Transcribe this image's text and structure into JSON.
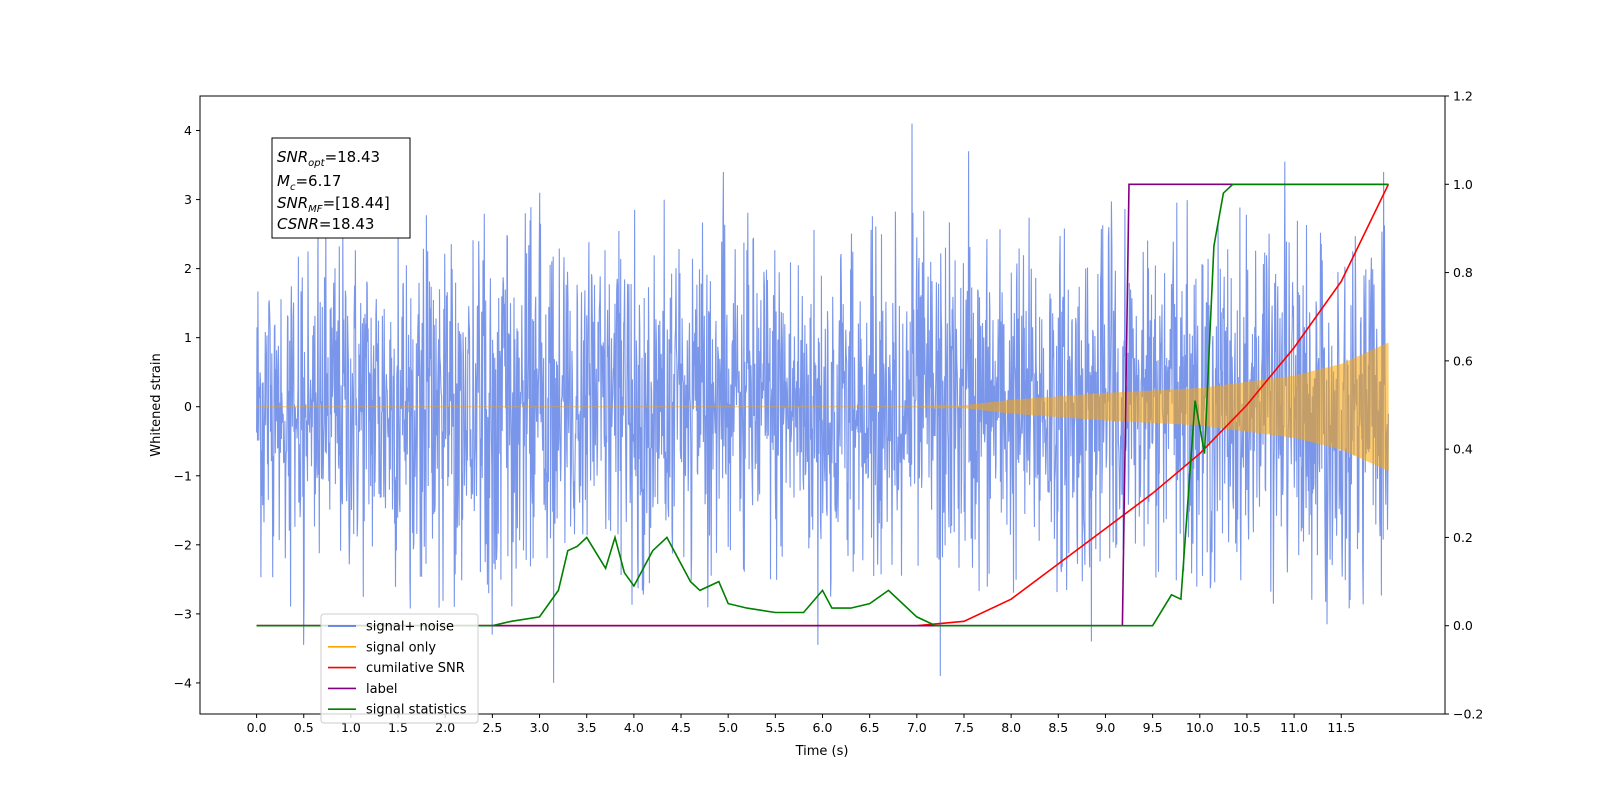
{
  "chart_data": {
    "type": "line",
    "xlabel": "Time (s)",
    "ylabel": "Whitened strain",
    "xlim": [
      -0.6,
      12.6
    ],
    "ylim": [
      -4.45,
      4.5
    ],
    "y2lim": [
      -0.2,
      1.2
    ],
    "x_ticks": [
      "0.0",
      "0.5",
      "1.0",
      "1.5",
      "2.0",
      "2.5",
      "3.0",
      "3.5",
      "4.0",
      "4.5",
      "5.0",
      "5.5",
      "6.0",
      "6.5",
      "7.0",
      "7.5",
      "8.0",
      "8.5",
      "9.0",
      "9.5",
      "10.0",
      "10.5",
      "11.0",
      "11.5"
    ],
    "y_ticks": [
      "4",
      "3",
      "2",
      "1",
      "0",
      "−1",
      "−2",
      "−3",
      "−4"
    ],
    "y2_ticks": [
      "1.2",
      "1.0",
      "0.8",
      "0.6",
      "0.4",
      "0.2",
      "0.0",
      "−0.2"
    ],
    "grid": false,
    "legend_position": "lower-left",
    "annotation": {
      "snr_opt_base": "SNR",
      "snr_opt_sub": "opt",
      "snr_opt_value": "=18.43",
      "mc_base": "M",
      "mc_sub": "c",
      "mc_value": "=6.17",
      "snr_mf_base": "SNR",
      "snr_mf_sub": "MF",
      "snr_mf_value": "=[18.44]",
      "csnr_base": "CSNR",
      "csnr_value": "=18.43"
    },
    "series": [
      {
        "name": "signal+ noise",
        "axis": "left",
        "color": "#4169e1",
        "style": "noise",
        "x_start": 0.0,
        "x_end": 12.0,
        "amplitude": 1.2,
        "spikes": [
          [
            0.5,
            -3.45
          ],
          [
            0.65,
            2.8
          ],
          [
            1.5,
            2.7
          ],
          [
            2.5,
            -3.3
          ],
          [
            3.15,
            -4.0
          ],
          [
            3.0,
            3.1
          ],
          [
            4.95,
            3.4
          ],
          [
            5.95,
            -3.45
          ],
          [
            6.95,
            4.1
          ],
          [
            7.25,
            -3.9
          ],
          [
            7.55,
            3.7
          ],
          [
            8.85,
            -3.4
          ],
          [
            10.9,
            3.55
          ],
          [
            11.35,
            -3.15
          ],
          [
            11.95,
            3.4
          ]
        ]
      },
      {
        "name": "signal only",
        "axis": "left",
        "color": "#ffa500",
        "style": "chirp",
        "x_start": 0.0,
        "x_end": 12.0,
        "envelope": [
          [
            0.0,
            0.0
          ],
          [
            7.0,
            0.0
          ],
          [
            7.5,
            0.02
          ],
          [
            8.0,
            0.1
          ],
          [
            9.0,
            0.2
          ],
          [
            10.0,
            0.27
          ],
          [
            11.0,
            0.45
          ],
          [
            11.5,
            0.62
          ],
          [
            12.0,
            0.93
          ]
        ]
      },
      {
        "name": "cumilative SNR",
        "axis": "right",
        "color": "#ff0000",
        "x": [
          0.0,
          7.0,
          7.5,
          8.0,
          8.5,
          9.0,
          9.5,
          10.0,
          10.5,
          11.0,
          11.5,
          12.0
        ],
        "values": [
          0.0,
          0.0,
          0.01,
          0.06,
          0.14,
          0.22,
          0.3,
          0.39,
          0.5,
          0.63,
          0.78,
          1.0
        ]
      },
      {
        "name": "label",
        "axis": "right",
        "color": "#800080",
        "x": [
          0.0,
          9.18,
          9.25,
          12.0
        ],
        "values": [
          0.0,
          0.0,
          1.0,
          1.0
        ]
      },
      {
        "name": "signal statistics",
        "axis": "right",
        "color": "#008000",
        "x": [
          0.0,
          2.5,
          2.7,
          3.0,
          3.2,
          3.3,
          3.4,
          3.5,
          3.7,
          3.8,
          3.9,
          4.0,
          4.2,
          4.35,
          4.5,
          4.6,
          4.7,
          4.9,
          5.0,
          5.2,
          5.5,
          5.8,
          6.0,
          6.1,
          6.3,
          6.5,
          6.7,
          7.0,
          7.2,
          7.5,
          8.0,
          8.5,
          9.0,
          9.5,
          9.7,
          9.8,
          9.95,
          10.05,
          10.15,
          10.25,
          10.35,
          10.5,
          12.0
        ],
        "values": [
          0.0,
          0.0,
          0.01,
          0.02,
          0.08,
          0.17,
          0.18,
          0.2,
          0.13,
          0.2,
          0.12,
          0.09,
          0.17,
          0.2,
          0.14,
          0.1,
          0.08,
          0.1,
          0.05,
          0.04,
          0.03,
          0.03,
          0.08,
          0.04,
          0.04,
          0.05,
          0.08,
          0.02,
          0.0,
          0.0,
          0.0,
          0.0,
          0.0,
          0.0,
          0.07,
          0.06,
          0.51,
          0.39,
          0.86,
          0.98,
          1.0,
          1.0,
          1.0
        ]
      }
    ]
  },
  "legend": {
    "items": [
      {
        "label": "signal+ noise",
        "color": "#4169e1"
      },
      {
        "label": "signal only",
        "color": "#ffa500"
      },
      {
        "label": "cumilative SNR",
        "color": "#ff0000"
      },
      {
        "label": "label",
        "color": "#800080"
      },
      {
        "label": "signal statistics",
        "color": "#008000"
      }
    ]
  }
}
